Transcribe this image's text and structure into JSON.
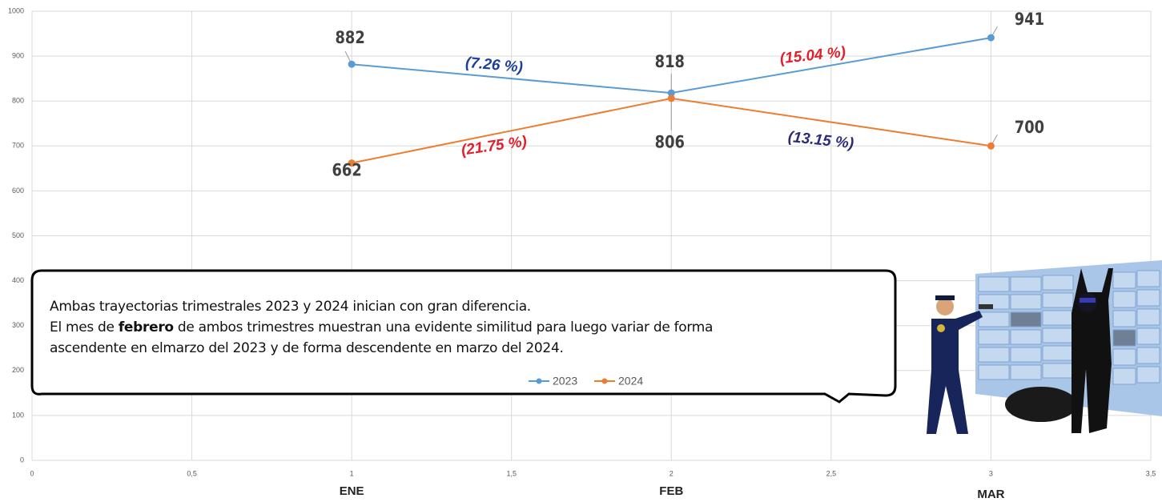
{
  "chart_data": {
    "type": "line",
    "x": [
      1,
      2,
      3
    ],
    "categories": [
      "ENE",
      "FEB",
      "MAR"
    ],
    "series": [
      {
        "name": "2023",
        "color": "#5b9bd5",
        "values": [
          882,
          818,
          941
        ]
      },
      {
        "name": "2024",
        "color": "#ed7d31",
        "values": [
          662,
          806,
          700
        ]
      }
    ],
    "xlim": [
      0,
      3.5
    ],
    "xticks": [
      0,
      {
        "value": 0.5,
        "label": "0,5"
      },
      1,
      {
        "value": 1.5,
        "label": "1,5"
      },
      2,
      {
        "value": 2.5,
        "label": "2,5"
      },
      3,
      {
        "value": 3.5,
        "label": "3,5"
      }
    ],
    "ylim": [
      0,
      1000
    ],
    "yticks": [
      0,
      100,
      200,
      300,
      400,
      500,
      600,
      700,
      800,
      900,
      1000
    ],
    "grid": true,
    "annotations": [
      {
        "text": "(7.26 %)",
        "color": "#1c3f9c"
      },
      {
        "text": "(15.04 %)",
        "color": "#e0202a"
      },
      {
        "text": "(21.75 %)",
        "color": "#e0202a"
      },
      {
        "text": "(13.15 %)",
        "color": "#2e2a7a"
      }
    ],
    "note": [
      [
        "Ambas trayectorias trimestrales 2023 y 2024 inician con gran diferencia."
      ],
      [
        "El mes de ",
        "febrero",
        " de ambos trimestres muestran una evidente similitud para luego variar de forma"
      ],
      [
        "ascendente en elmarzo del 2023 y de forma descendente en marzo del 2024."
      ]
    ]
  }
}
